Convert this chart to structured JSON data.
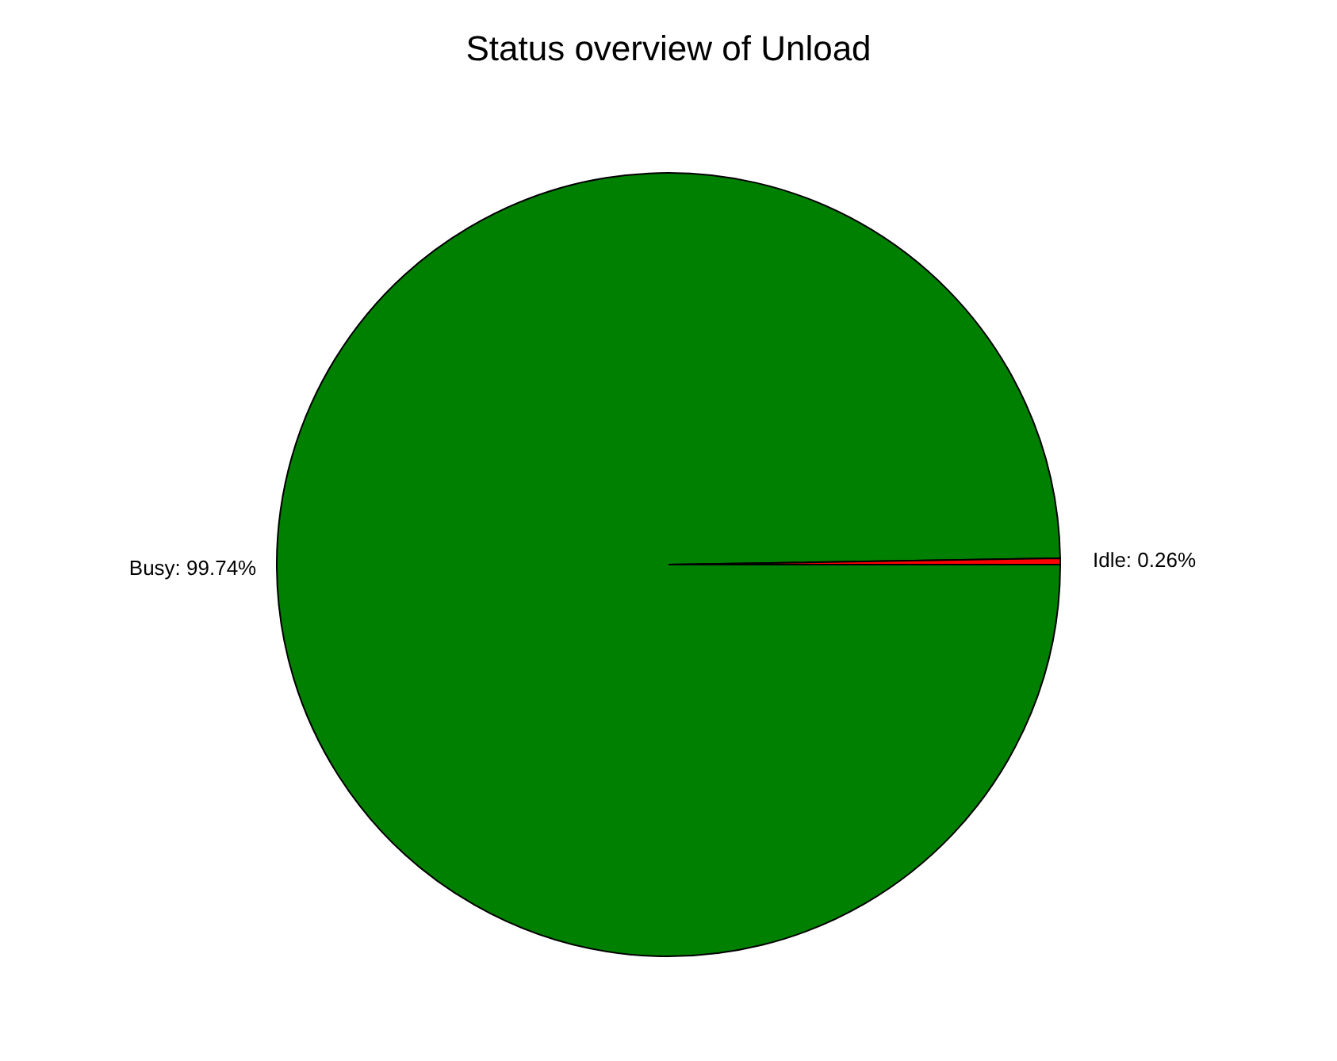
{
  "chart_data": {
    "type": "pie",
    "title": "Status overview of Unload",
    "categories": [
      "Busy",
      "Idle"
    ],
    "values": [
      99.74,
      0.26
    ],
    "colors": [
      "#008000",
      "#ff0000"
    ],
    "value_labels": [
      "99.74%",
      "0.26%"
    ]
  }
}
